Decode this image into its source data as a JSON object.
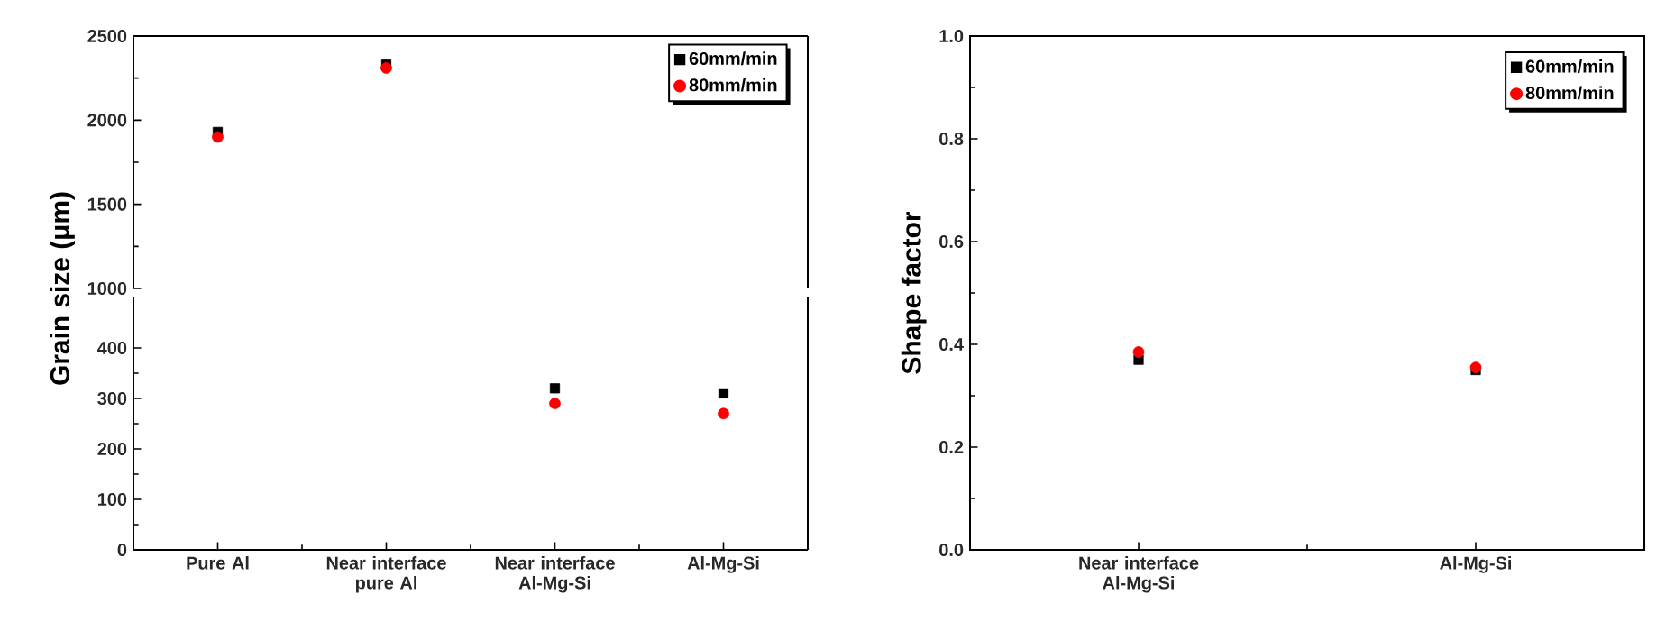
{
  "chart_data": [
    {
      "type": "scatter",
      "ylabel": "Grain size (μm)",
      "categories": [
        null,
        null,
        null,
        null
      ],
      "ylim": [
        1000,
        2500
      ],
      "yticks": [
        1000,
        1500,
        2000,
        2500
      ],
      "tick_labels": "y",
      "legend": "top right",
      "series": [
        {
          "name": "60mm/min",
          "color": "#000000",
          "marker": "square",
          "values": [
            1930,
            2330,
            null,
            null
          ]
        },
        {
          "name": "80mm/min",
          "color": "#ff0000",
          "marker": "circle",
          "values": [
            1900,
            2310,
            null,
            null
          ]
        }
      ]
    },
    {
      "type": "scatter",
      "categories": [
        "Pure Al",
        "Near interface pure Al",
        "Near interface Al-Mg-Si",
        "Al-Mg-Si"
      ],
      "ylim": [
        0,
        500
      ],
      "yticks": [
        0,
        100,
        200,
        300,
        400
      ],
      "series": [
        {
          "color": "#000000",
          "marker": "square",
          "values": [
            null,
            null,
            320,
            310
          ]
        },
        {
          "color": "#ff0000",
          "marker": "circle",
          "values": [
            null,
            null,
            290,
            270
          ]
        }
      ]
    },
    {
      "type": "scatter",
      "ylabel": "Shape factor",
      "categories": [
        "Near interface Al-Mg-Si",
        "Al-Mg-Si"
      ],
      "ylim": [
        0,
        1
      ],
      "yticks": [
        {
          "value": 0,
          "label": "0.0"
        },
        0.2,
        0.4,
        0.6,
        0.8,
        {
          "value": 1,
          "label": "1.0"
        }
      ],
      "legend": "top right",
      "series": [
        {
          "name": "60mm/min",
          "color": "#000000",
          "marker": "square",
          "values": [
            0.37,
            0.35
          ]
        },
        {
          "name": "80mm/min",
          "color": "#ff0000",
          "marker": "circle",
          "values": [
            0.385,
            0.355
          ]
        }
      ]
    }
  ]
}
